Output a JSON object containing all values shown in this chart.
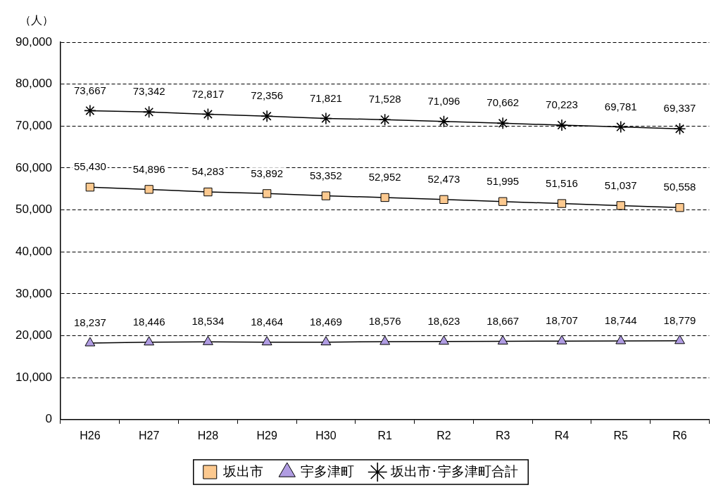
{
  "chart_data": {
    "type": "line",
    "ylabel": "（人）",
    "categories": [
      "H26",
      "H27",
      "H28",
      "H29",
      "H30",
      "R1",
      "R2",
      "R3",
      "R4",
      "R5",
      "R6"
    ],
    "series": [
      {
        "name": "坂出市",
        "color": "#fcc98f",
        "marker": "square",
        "values": [
          55430,
          54896,
          54283,
          53892,
          53352,
          52952,
          52473,
          51995,
          51516,
          51037,
          50558
        ],
        "value_labels": [
          "55,430",
          "54,896",
          "54,283",
          "53,892",
          "53,352",
          "52,952",
          "52,473",
          "51,995",
          "51,516",
          "51,037",
          "50,558"
        ]
      },
      {
        "name": "宇多津町",
        "color": "#b09ce2",
        "marker": "triangle",
        "values": [
          18237,
          18446,
          18534,
          18464,
          18469,
          18576,
          18623,
          18667,
          18707,
          18744,
          18779
        ],
        "value_labels": [
          "18,237",
          "18,446",
          "18,534",
          "18,464",
          "18,469",
          "18,576",
          "18,623",
          "18,667",
          "18,707",
          "18,744",
          "18,779"
        ]
      },
      {
        "name": "坂出市･宇多津町合計",
        "color": "#000000",
        "marker": "cross",
        "values": [
          73667,
          73342,
          72817,
          72356,
          71821,
          71528,
          71096,
          70662,
          70223,
          69781,
          69337
        ],
        "value_labels": [
          "73,667",
          "73,342",
          "72,817",
          "72,356",
          "71,821",
          "71,528",
          "71,096",
          "70,662",
          "70,223",
          "69,781",
          "69,337"
        ]
      }
    ],
    "ylim": [
      0,
      90000
    ],
    "yticks": [
      0,
      {
        "value": 10000,
        "label": "10,000"
      },
      {
        "value": 20000,
        "label": "20,000"
      },
      {
        "value": 30000,
        "label": "30,000"
      },
      {
        "value": 40000,
        "label": "40,000"
      },
      {
        "value": 50000,
        "label": "50,000"
      },
      {
        "value": 60000,
        "label": "60,000"
      },
      {
        "value": 70000,
        "label": "70,000"
      },
      {
        "value": 80000,
        "label": "80,000"
      },
      {
        "value": 90000,
        "label": "90,000"
      }
    ],
    "grid": "y",
    "line_style": "solid",
    "legend": "bottom"
  }
}
